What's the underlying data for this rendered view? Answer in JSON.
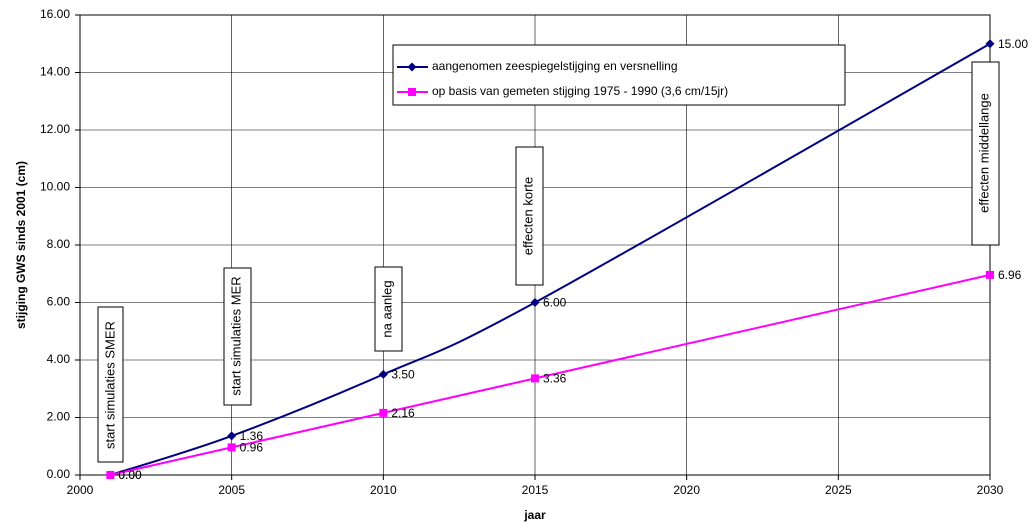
{
  "chart_data": {
    "type": "line",
    "x_label": "jaar",
    "y_label": "stijging GWS sinds 2001 (cm)",
    "x": [
      2001,
      2005,
      2010,
      2015,
      2030
    ],
    "series": [
      {
        "name": "aangenomen zeespiegelstijging en versnelling",
        "color": "#000080",
        "marker": "diamond",
        "smooth": true,
        "values": [
          0,
          1.36,
          3.5,
          6,
          15
        ],
        "value_labels": [
          "0.00",
          "1.36",
          "3.50",
          "6.00",
          "15.00"
        ]
      },
      {
        "name": "op basis van gemeten stijging 1975 - 1990 (3,6 cm/15jr)",
        "color": "#ff00ff",
        "marker": "square",
        "smooth": false,
        "values": [
          0,
          0.96,
          2.16,
          3.36,
          6.96
        ],
        "value_labels": [
          "0.00",
          "0.96",
          "2.16",
          "3.36",
          "6.96"
        ]
      }
    ],
    "xlim": [
      2000,
      2030
    ],
    "xticks": [
      2000,
      2005,
      2010,
      2015,
      2020,
      2025,
      2030
    ],
    "ylim": [
      0,
      16
    ],
    "yticks": [
      {
        "value": 0,
        "label": "0.00"
      },
      {
        "value": 2,
        "label": "2.00"
      },
      {
        "value": 4,
        "label": "4.00"
      },
      {
        "value": 6,
        "label": "6.00"
      },
      {
        "value": 8,
        "label": "8.00"
      },
      {
        "value": 10,
        "label": "10.00"
      },
      {
        "value": 12,
        "label": "12.00"
      },
      {
        "value": 14,
        "label": "14.00"
      },
      {
        "value": 16,
        "label": "16.00"
      }
    ],
    "grid": true,
    "annotations": [
      "start simulaties SMER",
      "start simulaties MER",
      "na aanleg",
      "effecten korte",
      "effecten middellange"
    ]
  }
}
